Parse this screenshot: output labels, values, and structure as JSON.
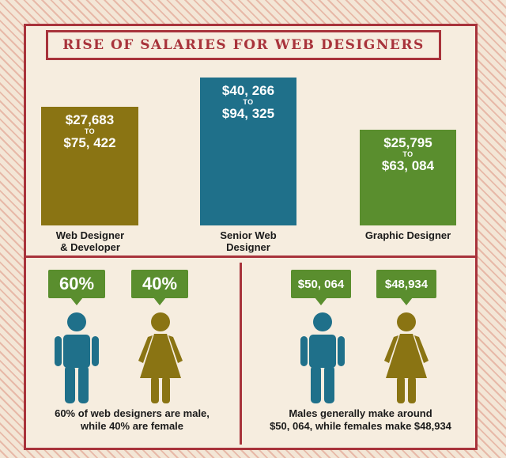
{
  "title": "RISE OF SALARIES FOR WEB DESIGNERS",
  "colors": {
    "olive": "#8a7413",
    "teal": "#1f708a",
    "green": "#5a8e2e",
    "red": "#a8333b"
  },
  "chart_data": {
    "type": "bar",
    "title": "RISE OF SALARIES FOR WEB DESIGNERS",
    "categories": [
      "Web Designer\n& Developer",
      "Senior Web\nDesigner",
      "Graphic Designer"
    ],
    "range_word": "TO",
    "bars": [
      {
        "low_label": "$27,683",
        "high_label": "$75, 422",
        "low": 27683,
        "high": 75422
      },
      {
        "low_label": "$40, 266",
        "high_label": "$94, 325",
        "low": 40266,
        "high": 94325
      },
      {
        "low_label": "$25,795",
        "high_label": "$63, 084",
        "low": 25795,
        "high": 63084
      }
    ]
  },
  "gender": {
    "share": {
      "male": "60%",
      "female": "40%",
      "caption": "60% of web designers are male,\nwhile 40% are female"
    },
    "pay": {
      "male": "$50, 064",
      "female": "$48,934",
      "caption": "Males generally make around\n$50, 064, while females make $48,934"
    }
  },
  "icons": [
    "male-figure-icon",
    "female-figure-icon"
  ]
}
